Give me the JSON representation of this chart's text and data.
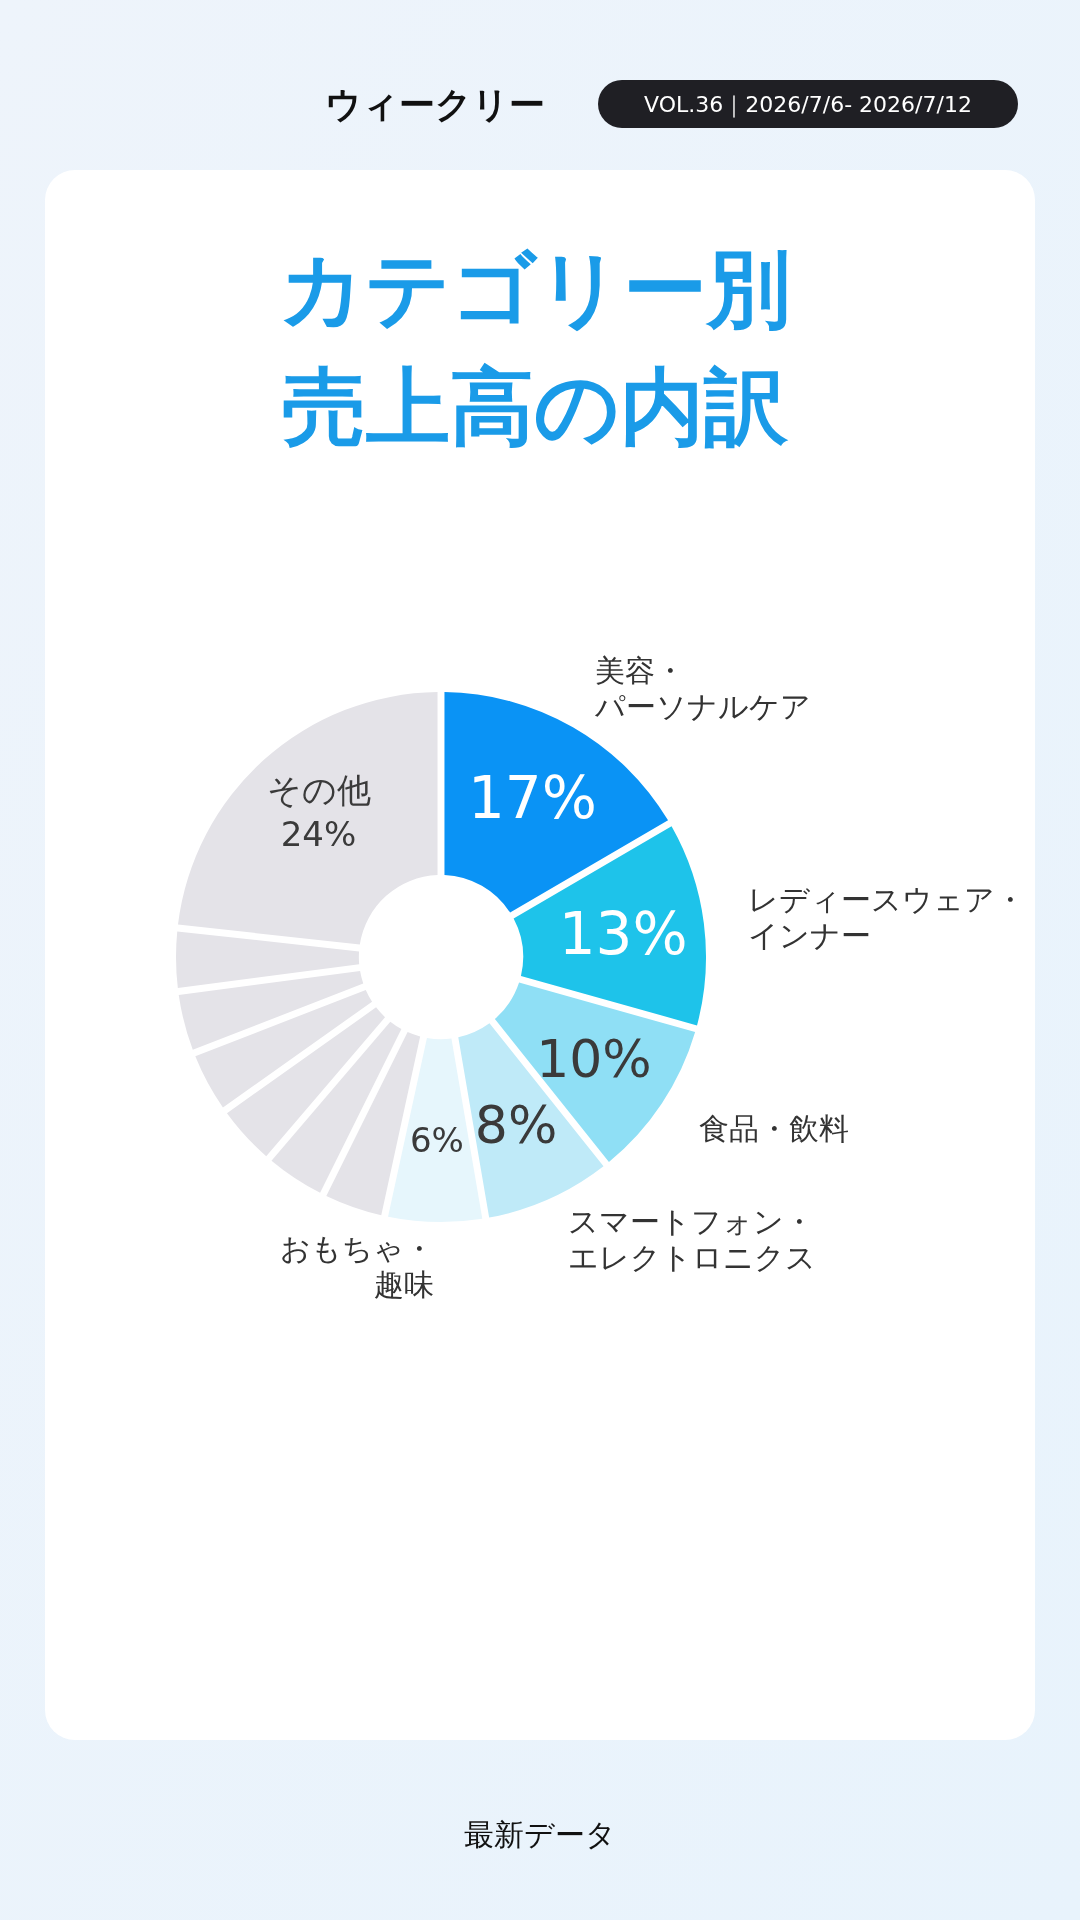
{
  "chart_data": {
    "type": "donut",
    "title": "カテゴリー別売上高の内訳",
    "subtitle": "VOL.36｜2026/7/6- 2026/7/12",
    "categories": [
      "美容・パーソナルケア",
      "レディースウェア・インナー",
      "食品・飲料",
      "スマートフォン・エレクトロニクス",
      "おもちゃ・趣味",
      null,
      null,
      null,
      null,
      null,
      null,
      "その他"
    ],
    "values": [
      17,
      13,
      10,
      8,
      6,
      3.7,
      3.7,
      3.7,
      3.7,
      3.6,
      3.6,
      24
    ],
    "value_labels": [
      "17%",
      "13%",
      "10%",
      "8%",
      "6%",
      null,
      null,
      null,
      null,
      null,
      null,
      "24%"
    ],
    "colors": [
      "#0a93f5",
      "#1ec3ea",
      "#8fdff5",
      "#bfeaf8",
      "#e6f6fc",
      "#e4e3e8",
      "#e4e3e8",
      "#e4e3e8",
      "#e4e3e8",
      "#e4e3e8",
      "#e4e3e8",
      "#e4e3e8"
    ],
    "annotations": [
      "ウィークリー",
      "最新データ"
    ]
  }
}
